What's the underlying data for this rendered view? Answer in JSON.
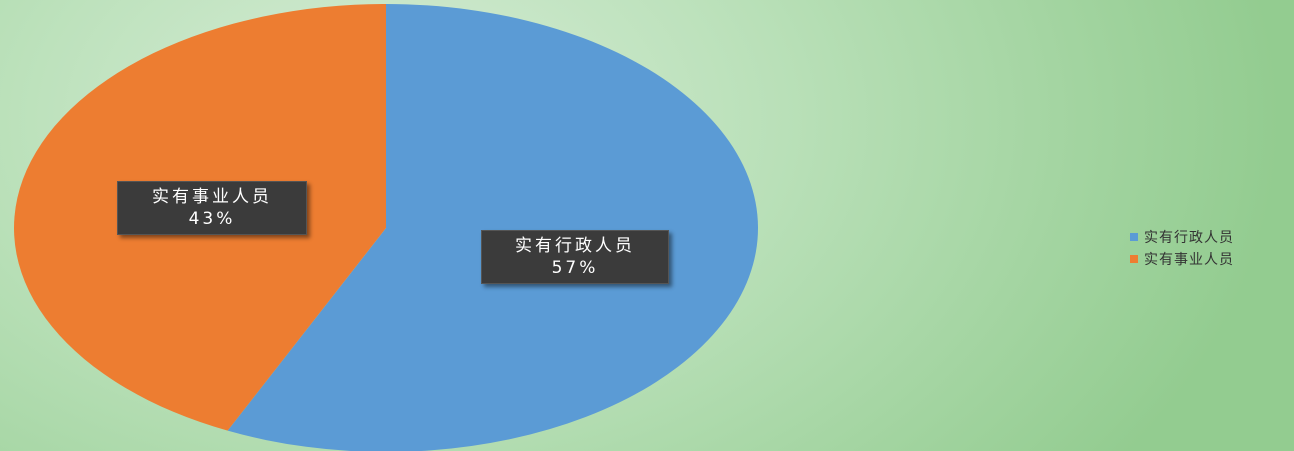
{
  "chart_data": {
    "type": "pie",
    "title": "",
    "categories": [
      "实有行政人员",
      "实有事业人员"
    ],
    "values": [
      57,
      43
    ],
    "unit": "%",
    "colors": [
      "#5b9bd5",
      "#ed7d31"
    ],
    "data_labels": [
      {
        "name": "实有行政人员",
        "value": "57%"
      },
      {
        "name": "实有事业人员",
        "value": "43%"
      }
    ],
    "legend": {
      "position": "right",
      "items": [
        {
          "label": "实有行政人员",
          "color": "#5b9bd5"
        },
        {
          "label": "实有事业人员",
          "color": "#ed7d31"
        }
      ]
    }
  }
}
